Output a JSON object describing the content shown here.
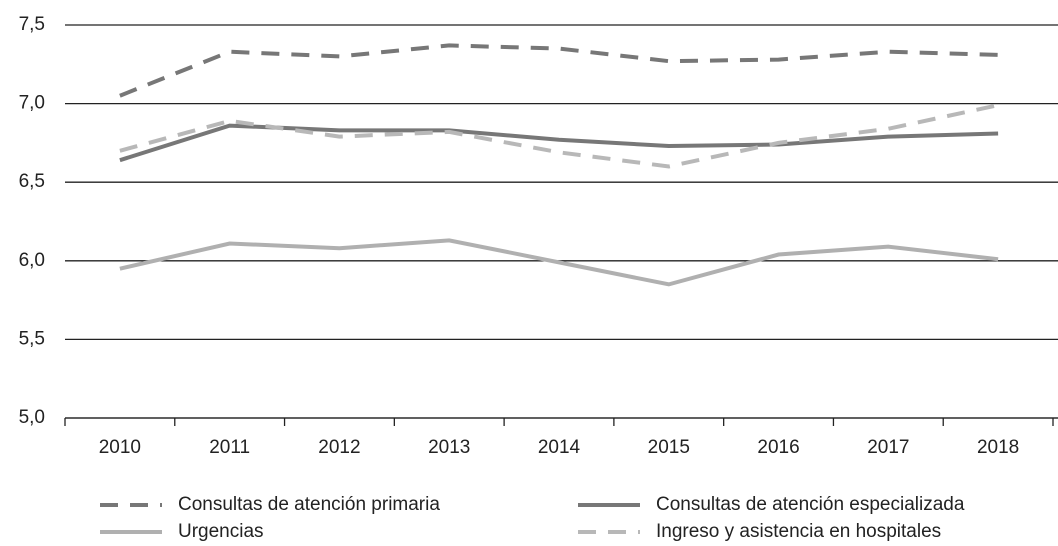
{
  "chart_data": {
    "type": "line",
    "categories": [
      "2010",
      "2011",
      "2012",
      "2013",
      "2014",
      "2015",
      "2016",
      "2017",
      "2018"
    ],
    "series": [
      {
        "name": "Consultas de atención primaria",
        "color": "#777777",
        "line_style": "dashed",
        "values": [
          7.05,
          7.33,
          7.3,
          7.37,
          7.35,
          7.27,
          7.28,
          7.33,
          7.31
        ]
      },
      {
        "name": "Consultas de atención especializada",
        "color": "#777777",
        "line_style": "solid",
        "values": [
          6.64,
          6.86,
          6.83,
          6.83,
          6.77,
          6.73,
          6.74,
          6.79,
          6.81
        ]
      },
      {
        "name": "Urgencias",
        "color": "#b0b0b0",
        "line_style": "solid",
        "values": [
          5.95,
          6.11,
          6.08,
          6.13,
          5.99,
          5.85,
          6.04,
          6.09,
          6.01
        ]
      },
      {
        "name": "Ingreso y asistencia en hospitales",
        "color": "#b8b8b8",
        "line_style": "dashed",
        "values": [
          6.7,
          6.89,
          6.79,
          6.82,
          6.69,
          6.6,
          6.75,
          6.84,
          6.99
        ]
      }
    ],
    "ylim": [
      5.0,
      7.5
    ],
    "yticks": [
      {
        "value": 5.0,
        "label": "5,0"
      },
      {
        "value": 5.5,
        "label": "5,5"
      },
      {
        "value": 6.0,
        "label": "6,0"
      },
      {
        "value": 6.5,
        "label": "6,5"
      },
      {
        "value": 7.0,
        "label": "7,0"
      },
      {
        "value": 7.5,
        "label": "7,5"
      }
    ],
    "grid": true,
    "legend": "bottom"
  }
}
